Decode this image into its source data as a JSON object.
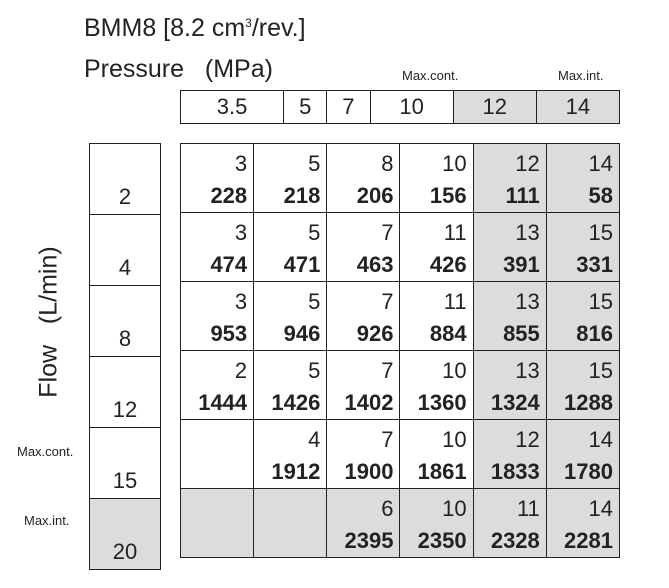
{
  "title": {
    "prefix": "BMM8 [8.2 cm",
    "superscript": "3",
    "suffix": "/rev.]"
  },
  "pressure_title": "Pressure   (MPa)",
  "flow_title": "Flow   (L/min)",
  "labels": {
    "max_cont": "Max.cont.",
    "max_int": "Max.int."
  },
  "pressures": [
    "3.5",
    "5",
    "7",
    "10",
    "12",
    "14"
  ],
  "flows": [
    "2",
    "4",
    "8",
    "12",
    "15",
    "20"
  ],
  "rows": [
    [
      [
        "3",
        "228"
      ],
      [
        "5",
        "218"
      ],
      [
        "8",
        "206"
      ],
      [
        "10",
        "156"
      ],
      [
        "12",
        "111"
      ],
      [
        "14",
        "58"
      ]
    ],
    [
      [
        "3",
        "474"
      ],
      [
        "5",
        "471"
      ],
      [
        "7",
        "463"
      ],
      [
        "11",
        "426"
      ],
      [
        "13",
        "391"
      ],
      [
        "15",
        "331"
      ]
    ],
    [
      [
        "3",
        "953"
      ],
      [
        "5",
        "946"
      ],
      [
        "7",
        "926"
      ],
      [
        "11",
        "884"
      ],
      [
        "13",
        "855"
      ],
      [
        "15",
        "816"
      ]
    ],
    [
      [
        "2",
        "1444"
      ],
      [
        "5",
        "1426"
      ],
      [
        "7",
        "1402"
      ],
      [
        "10",
        "1360"
      ],
      [
        "13",
        "1324"
      ],
      [
        "15",
        "1288"
      ]
    ],
    [
      [
        "",
        ""
      ],
      [
        "4",
        "1912"
      ],
      [
        "7",
        "1900"
      ],
      [
        "10",
        "1861"
      ],
      [
        "12",
        "1833"
      ],
      [
        "14",
        "1780"
      ]
    ],
    [
      [
        "",
        ""
      ],
      [
        "",
        ""
      ],
      [
        "6",
        "2395"
      ],
      [
        "10",
        "2350"
      ],
      [
        "11",
        "2328"
      ],
      [
        "14",
        "2281"
      ]
    ]
  ]
}
